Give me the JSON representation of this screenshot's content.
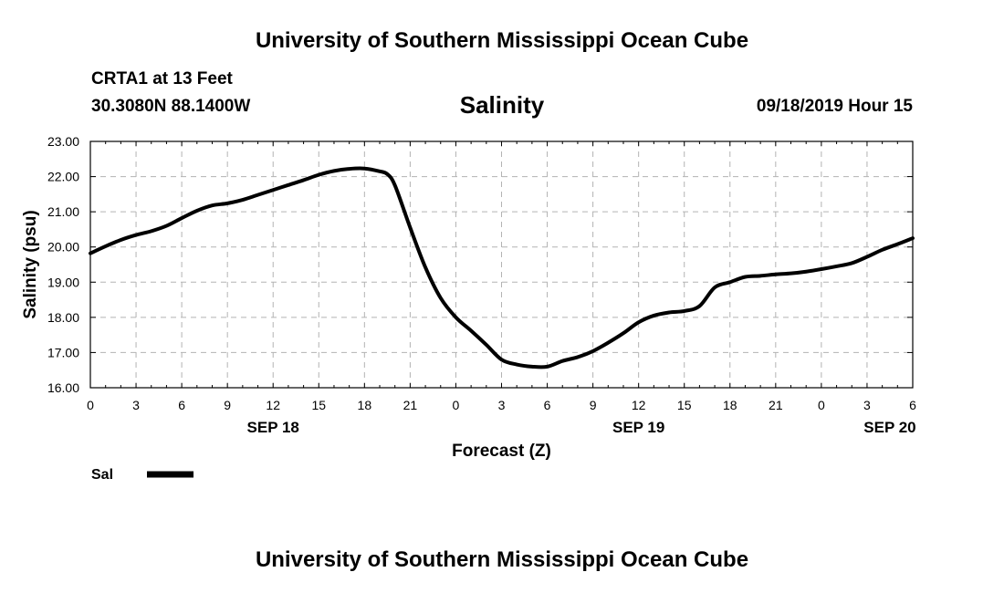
{
  "header": {
    "org_title": "University of Southern Mississippi Ocean Cube",
    "station": "CRTA1 at 13 Feet",
    "coords": "30.3080N 88.1400W",
    "variable": "Salinity",
    "issued": "09/18/2019 Hour 15"
  },
  "footer": {
    "org_title": "University of Southern Mississippi Ocean Cube"
  },
  "legend": {
    "label": "Sal",
    "color": "#000000"
  },
  "chart_data": {
    "type": "line",
    "title": "Salinity",
    "xlabel": "Forecast (Z)",
    "ylabel": "Salinity (psu)",
    "x_unit": "hours since SEP 18 00Z",
    "xlim": [
      0,
      54
    ],
    "ylim": [
      16.0,
      23.0
    ],
    "grid": true,
    "legend_position": "bottom-left",
    "x_ticks": [
      {
        "x": 0,
        "label": "0"
      },
      {
        "x": 3,
        "label": "3"
      },
      {
        "x": 6,
        "label": "6"
      },
      {
        "x": 9,
        "label": "9"
      },
      {
        "x": 12,
        "label": "12"
      },
      {
        "x": 15,
        "label": "15"
      },
      {
        "x": 18,
        "label": "18"
      },
      {
        "x": 21,
        "label": "21"
      },
      {
        "x": 24,
        "label": "0"
      },
      {
        "x": 27,
        "label": "3"
      },
      {
        "x": 30,
        "label": "6"
      },
      {
        "x": 33,
        "label": "9"
      },
      {
        "x": 36,
        "label": "12"
      },
      {
        "x": 39,
        "label": "15"
      },
      {
        "x": 42,
        "label": "18"
      },
      {
        "x": 45,
        "label": "21"
      },
      {
        "x": 48,
        "label": "0"
      },
      {
        "x": 51,
        "label": "3"
      },
      {
        "x": 54,
        "label": "6"
      }
    ],
    "date_labels": [
      {
        "x": 12,
        "label": "SEP 18"
      },
      {
        "x": 36,
        "label": "SEP 19"
      },
      {
        "x": 52.5,
        "label": "SEP 20"
      }
    ],
    "y_ticks": [
      "16.00",
      "17.00",
      "18.00",
      "19.00",
      "20.00",
      "21.00",
      "22.00",
      "23.00"
    ],
    "series": [
      {
        "name": "Sal",
        "color": "#000000",
        "x": [
          0,
          1,
          2,
          3,
          4,
          5,
          6,
          7,
          8,
          9,
          10,
          11,
          12,
          13,
          14,
          15,
          16,
          17,
          18,
          19,
          19.5,
          20,
          21,
          22,
          23,
          24,
          25,
          26,
          27,
          28,
          29,
          30,
          31,
          32,
          33,
          34,
          35,
          36,
          37,
          38,
          39,
          40,
          41,
          42,
          43,
          44,
          45,
          46,
          47,
          48,
          49,
          50,
          51,
          52,
          53,
          54
        ],
        "values": [
          19.82,
          20.02,
          20.2,
          20.34,
          20.45,
          20.6,
          20.82,
          21.03,
          21.18,
          21.24,
          21.34,
          21.48,
          21.62,
          21.76,
          21.9,
          22.05,
          22.16,
          22.22,
          22.23,
          22.15,
          22.07,
          21.75,
          20.55,
          19.42,
          18.55,
          18.0,
          17.62,
          17.22,
          16.8,
          16.66,
          16.6,
          16.6,
          16.76,
          16.87,
          17.04,
          17.28,
          17.55,
          17.86,
          18.05,
          18.14,
          18.18,
          18.32,
          18.85,
          19.0,
          19.15,
          19.18,
          19.22,
          19.25,
          19.3,
          19.37,
          19.45,
          19.54,
          19.72,
          19.92,
          20.08,
          20.25
        ]
      }
    ]
  }
}
